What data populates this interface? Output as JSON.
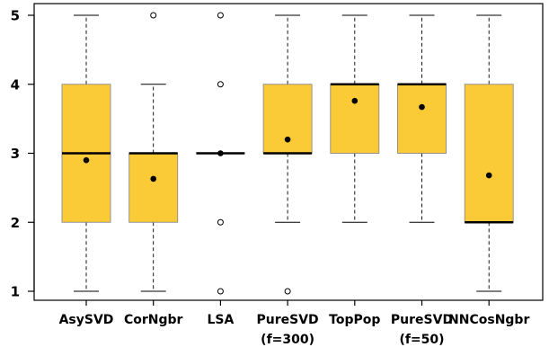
{
  "chart_data": {
    "type": "boxplot",
    "title": "",
    "xlabel": "",
    "ylabel": "",
    "ylim": [
      0.85,
      5.05
    ],
    "yticks": [
      1,
      2,
      3,
      4,
      5
    ],
    "grid": false,
    "legend": "none",
    "box_color": "#FBCB37",
    "categories": [
      {
        "label": "AsySVD",
        "sublabel": "",
        "whisker_low": 1,
        "q1": 2,
        "median": 3,
        "q3": 4,
        "whisker_high": 5,
        "mean": 2.9,
        "outliers": []
      },
      {
        "label": "CorNgbr",
        "sublabel": "",
        "whisker_low": 1,
        "q1": 2,
        "median": 3,
        "q3": 3,
        "whisker_high": 4,
        "mean": 2.63,
        "outliers": [
          5
        ]
      },
      {
        "label": "LSA",
        "sublabel": "",
        "whisker_low": 3,
        "q1": 3,
        "median": 3,
        "q3": 3,
        "whisker_high": 3,
        "mean": 3.0,
        "outliers": [
          1,
          2,
          4,
          5
        ]
      },
      {
        "label": "PureSVD",
        "sublabel": "(f=300)",
        "whisker_low": 2,
        "q1": 3,
        "median": 3,
        "q3": 4,
        "whisker_high": 5,
        "mean": 3.2,
        "outliers": [
          1
        ]
      },
      {
        "label": "TopPop",
        "sublabel": "",
        "whisker_low": 2,
        "q1": 3,
        "median": 4,
        "q3": 4,
        "whisker_high": 5,
        "mean": 3.76,
        "outliers": []
      },
      {
        "label": "PureSVD",
        "sublabel": "(f=50)",
        "whisker_low": 2,
        "q1": 3,
        "median": 4,
        "q3": 4,
        "whisker_high": 5,
        "mean": 3.67,
        "outliers": []
      },
      {
        "label": "NNCosNgbr",
        "sublabel": "",
        "whisker_low": 1,
        "q1": 2,
        "median": 2,
        "q3": 4,
        "whisker_high": 5,
        "mean": 2.68,
        "outliers": []
      }
    ]
  }
}
